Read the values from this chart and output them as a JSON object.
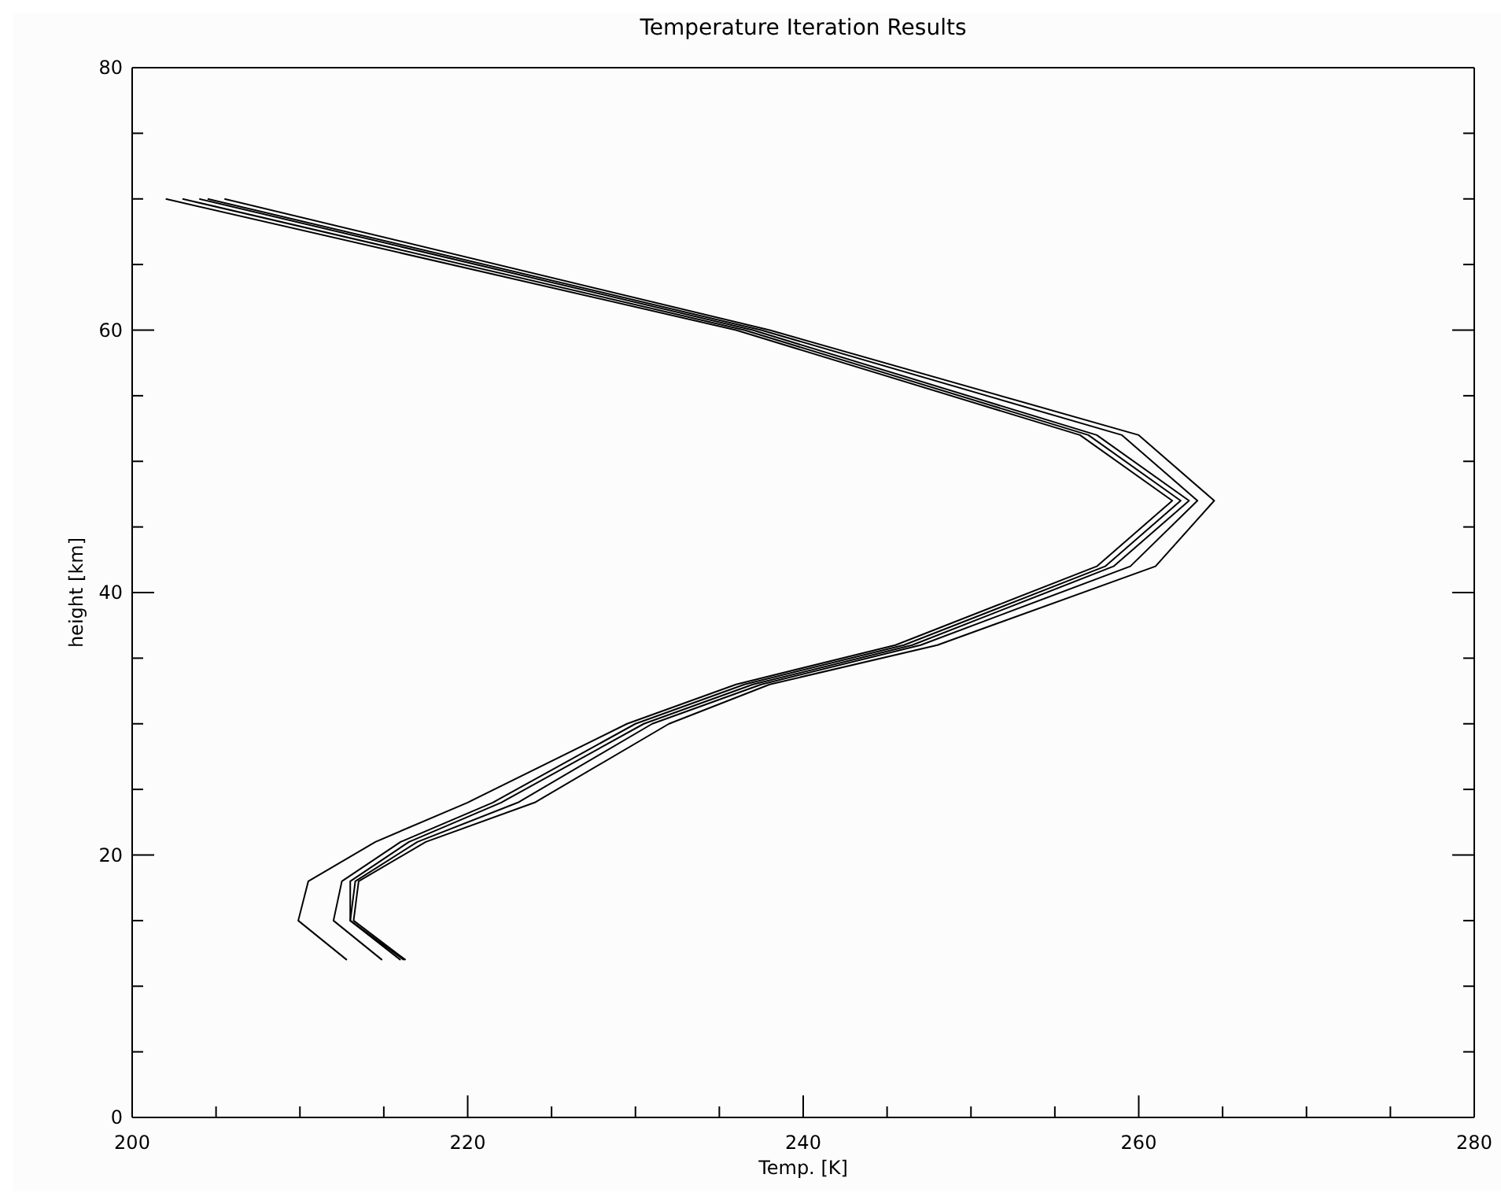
{
  "chart_data": {
    "type": "line",
    "title": "Temperature Iteration Results",
    "xlabel": "Temp. [K]",
    "ylabel": "height [km]",
    "xlim": [
      200,
      280
    ],
    "ylim": [
      0,
      80
    ],
    "xticks": [
      200,
      {
        "value": 205,
        "label": null
      },
      {
        "value": 210,
        "label": null
      },
      {
        "value": 215,
        "label": null
      },
      220,
      {
        "value": 225,
        "label": null
      },
      {
        "value": 230,
        "label": null
      },
      {
        "value": 235,
        "label": null
      },
      240,
      {
        "value": 245,
        "label": null
      },
      {
        "value": 250,
        "label": null
      },
      {
        "value": 255,
        "label": null
      },
      260,
      {
        "value": 265,
        "label": null
      },
      {
        "value": 270,
        "label": null
      },
      {
        "value": 275,
        "label": null
      },
      280
    ],
    "yticks": [
      0,
      {
        "value": 5,
        "label": null
      },
      {
        "value": 10,
        "label": null
      },
      {
        "value": 15,
        "label": null
      },
      20,
      {
        "value": 25,
        "label": null
      },
      {
        "value": 30,
        "label": null
      },
      {
        "value": 35,
        "label": null
      },
      40,
      {
        "value": 45,
        "label": null
      },
      {
        "value": 50,
        "label": null
      },
      {
        "value": 55,
        "label": null
      },
      60,
      {
        "value": 65,
        "label": null
      },
      {
        "value": 70,
        "label": null
      },
      {
        "value": 75,
        "label": null
      },
      80
    ],
    "grid": false,
    "legend": false,
    "marker": "none",
    "line_style": "solid",
    "series": [
      {
        "color": "#000000",
        "x": [
          212.8,
          209.9,
          210.5,
          214.5,
          220,
          229.5,
          236,
          245.5,
          257.5,
          262,
          256.5,
          236,
          202
        ],
        "values": [
          12,
          15,
          18,
          21,
          24,
          30,
          33,
          36,
          42,
          47,
          52,
          60,
          70
        ]
      },
      {
        "color": "#000000",
        "x": [
          214.9,
          212,
          212.5,
          216,
          221.5,
          230,
          236.5,
          246,
          258,
          262.5,
          257,
          236.5,
          203
        ],
        "values": [
          12,
          15,
          18,
          21,
          24,
          30,
          33,
          36,
          42,
          47,
          52,
          60,
          70
        ]
      },
      {
        "color": "#000000",
        "x": [
          216,
          213,
          213,
          216.5,
          222,
          230.5,
          237,
          246.5,
          258.5,
          263,
          257.5,
          237,
          204
        ],
        "values": [
          12,
          15,
          18,
          21,
          24,
          30,
          33,
          36,
          42,
          47,
          52,
          60,
          70
        ]
      },
      {
        "color": "#000000",
        "x": [
          216.2,
          213,
          213.3,
          217,
          223,
          231,
          237.5,
          247,
          259.5,
          263.5,
          259,
          237.5,
          204.5
        ],
        "values": [
          12,
          15,
          18,
          21,
          24,
          30,
          33,
          36,
          42,
          47,
          52,
          60,
          70
        ]
      },
      {
        "color": "#000000",
        "x": [
          216.3,
          213.2,
          213.5,
          217.5,
          224,
          232,
          238,
          248,
          261,
          264.5,
          260,
          238,
          205.5
        ],
        "values": [
          12,
          15,
          18,
          21,
          24,
          30,
          33,
          36,
          42,
          47,
          52,
          60,
          70
        ]
      }
    ]
  }
}
